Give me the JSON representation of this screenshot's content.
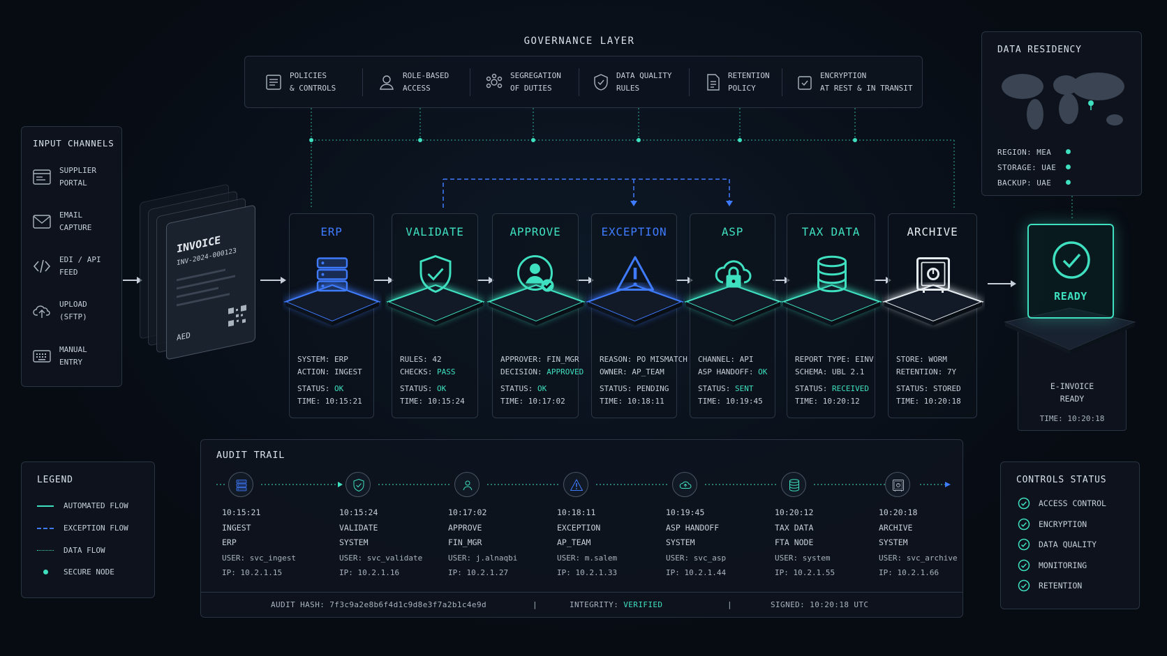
{
  "governance": {
    "title": "GOVERNANCE LAYER",
    "items": [
      {
        "icon": "policies-icon",
        "label": "POLICIES\n& CONTROLS"
      },
      {
        "icon": "user-icon",
        "label": "ROLE-BASED\nACCESS"
      },
      {
        "icon": "segregation-icon",
        "label": "SEGREGATION\nOF DUTIES"
      },
      {
        "icon": "shield-check-icon",
        "label": "DATA QUALITY\nRULES"
      },
      {
        "icon": "document-icon",
        "label": "RETENTION\nPOLICY"
      },
      {
        "icon": "lock-check-icon",
        "label": "ENCRYPTION\nAT REST & IN TRANSIT"
      }
    ]
  },
  "input_channels": {
    "title": "INPUT CHANNELS",
    "items": [
      {
        "icon": "portal-icon",
        "label": "SUPPLIER\nPORTAL"
      },
      {
        "icon": "email-icon",
        "label": "EMAIL\nCAPTURE"
      },
      {
        "icon": "code-icon",
        "label": "EDI / API\nFEED"
      },
      {
        "icon": "upload-cloud-icon",
        "label": "UPLOAD\n(SFTP)"
      },
      {
        "icon": "keyboard-icon",
        "label": "MANUAL\nENTRY"
      }
    ]
  },
  "invoice": {
    "title": "INVOICE",
    "number": "INV-2024-000123",
    "currency": "AED"
  },
  "stages": [
    {
      "title": "ERP",
      "icon": "server-icon",
      "accent": "#3f7bff",
      "l1k": "SYSTEM: ",
      "l1v": "ERP",
      "l2k": "ACTION: ",
      "l2v": "INGEST",
      "sk": "STATUS: ",
      "sv": "OK",
      "tk": "TIME: ",
      "tv": "10:15:21"
    },
    {
      "title": "VALIDATE",
      "icon": "shield-check-icon",
      "accent": "#3fe0c0",
      "l1k": "RULES: ",
      "l1v": "42",
      "l2k": "CHECKS: ",
      "l2v": "PASS",
      "sk": "STATUS: ",
      "sv": "OK",
      "tk": "TIME: ",
      "tv": "10:15:24"
    },
    {
      "title": "APPROVE",
      "icon": "user-check-icon",
      "accent": "#3fe0c0",
      "l1k": "APPROVER: ",
      "l1v": "FIN_MGR",
      "l2k": "DECISION: ",
      "l2v": "APPROVED",
      "sk": "STATUS: ",
      "sv": "OK",
      "tk": "TIME: ",
      "tv": "10:17:02"
    },
    {
      "title": "EXCEPTION",
      "icon": "warning-icon",
      "accent": "#3f7bff",
      "l1k": "REASON: ",
      "l1v": "PO MISMATCH",
      "l2k": "OWNER: ",
      "l2v": "AP_TEAM",
      "sk": "STATUS: ",
      "sv": "PENDING",
      "tk": "TIME: ",
      "tv": "10:18:11"
    },
    {
      "title": "ASP",
      "icon": "cloud-lock-icon",
      "accent": "#3fe0c0",
      "l1k": "CHANNEL: ",
      "l1v": "API",
      "l2k": "ASP HANDOFF: ",
      "l2v": "OK",
      "sk": "STATUS: ",
      "sv": "SENT",
      "tk": "TIME: ",
      "tv": "10:19:45"
    },
    {
      "title": "TAX DATA",
      "icon": "database-icon",
      "accent": "#3fe0c0",
      "l1k": "REPORT TYPE: ",
      "l1v": "EINV",
      "l2k": "SCHEMA: ",
      "l2v": "UBL 2.1",
      "sk": "STATUS: ",
      "sv": "RECEIVED",
      "tk": "TIME: ",
      "tv": "10:20:12"
    },
    {
      "title": "ARCHIVE",
      "icon": "safe-icon",
      "accent": "#e6ebf0",
      "l1k": "STORE: ",
      "l1v": "WORM",
      "l2k": "RETENTION: ",
      "l2v": "7Y",
      "sk": "STATUS: ",
      "sv": "STORED",
      "tk": "TIME: ",
      "tv": "10:20:18"
    }
  ],
  "residency": {
    "title": "DATA RESIDENCY",
    "rows": [
      {
        "k": "REGION: ",
        "v": "MEA"
      },
      {
        "k": "STORAGE: ",
        "v": "UAE"
      },
      {
        "k": "BACKUP: ",
        "v": "UAE"
      }
    ]
  },
  "ready": {
    "label": "READY",
    "caption": "E-INVOICE\nREADY",
    "time": "TIME: 10:20:18"
  },
  "legend": {
    "title": "LEGEND",
    "items": [
      "AUTOMATED FLOW",
      "EXCEPTION FLOW",
      "DATA FLOW",
      "SECURE NODE"
    ]
  },
  "audit": {
    "title": "AUDIT TRAIL",
    "events": [
      {
        "icon": "server-icon",
        "time": "10:15:21",
        "action": "INGEST",
        "actor": "ERP",
        "user": "USER: svc_ingest",
        "ip": "IP: 10.2.1.15"
      },
      {
        "icon": "shield-check-icon",
        "time": "10:15:24",
        "action": "VALIDATE",
        "actor": "SYSTEM",
        "user": "USER: svc_validate",
        "ip": "IP: 10.2.1.16"
      },
      {
        "icon": "user-icon",
        "time": "10:17:02",
        "action": "APPROVE",
        "actor": "FIN_MGR",
        "user": "USER: j.alnaqbi",
        "ip": "IP: 10.2.1.27"
      },
      {
        "icon": "warning-icon",
        "time": "10:18:11",
        "action": "EXCEPTION",
        "actor": "AP_TEAM",
        "user": "USER: m.salem",
        "ip": "IP: 10.2.1.33"
      },
      {
        "icon": "cloud-icon",
        "time": "10:19:45",
        "action": "ASP HANDOFF",
        "actor": "SYSTEM",
        "user": "USER: svc_asp",
        "ip": "IP: 10.2.1.44"
      },
      {
        "icon": "database-icon",
        "time": "10:20:12",
        "action": "TAX DATA",
        "actor": "FTA NODE",
        "user": "USER: system",
        "ip": "IP: 10.2.1.55"
      },
      {
        "icon": "safe-icon",
        "time": "10:20:18",
        "action": "ARCHIVE",
        "actor": "SYSTEM",
        "user": "USER: svc_archive",
        "ip": "IP: 10.2.1.66"
      }
    ],
    "footer": {
      "hash_label": "AUDIT HASH: ",
      "hash": "7f3c9a2e8b6f4d1c9d8e3f7a2b1c4e9d",
      "integrity_label": "INTEGRITY: ",
      "integrity": "VERIFIED",
      "signed": "SIGNED: 10:20:18 UTC",
      "sep": "|"
    }
  },
  "controls": {
    "title": "CONTROLS STATUS",
    "items": [
      "ACCESS CONTROL",
      "ENCRYPTION",
      "DATA QUALITY",
      "MONITORING",
      "RETENTION"
    ]
  },
  "colors": {
    "teal": "#3fe0c0",
    "blue": "#3f7bff",
    "panel": "#0e141e",
    "border": "#2a3442"
  }
}
